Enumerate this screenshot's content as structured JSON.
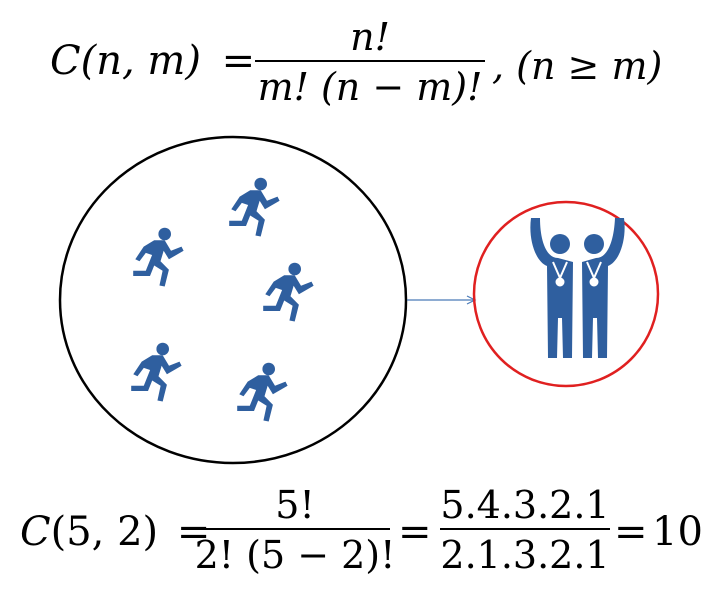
{
  "general_formula": {
    "lhs_func": "C",
    "lhs_args": "(n, m)",
    "equals": "=",
    "numerator": "n!",
    "denominator": "m! (n − m)!",
    "condition": ", (n ≥ m)"
  },
  "example": {
    "lhs_func": "C",
    "lhs_args": "(5, 2)",
    "eq1": "=",
    "frac1_num": "5!",
    "frac1_den": "2! (5 − 2)!",
    "eq2": "=",
    "frac2_num": "5.4.3.2.1",
    "frac2_den": "2.1.3.2.1",
    "eq3": "=",
    "result": "10"
  },
  "diagram": {
    "set_circle": {
      "stroke_color": "#000000",
      "runner_count": 5,
      "icon": "runner-icon"
    },
    "subset_circle": {
      "stroke_color": "#e02020",
      "icon": "winners-with-medals-icon"
    },
    "arrow_color": "#4a7ab8",
    "icon_color": "#2f5f9f"
  }
}
